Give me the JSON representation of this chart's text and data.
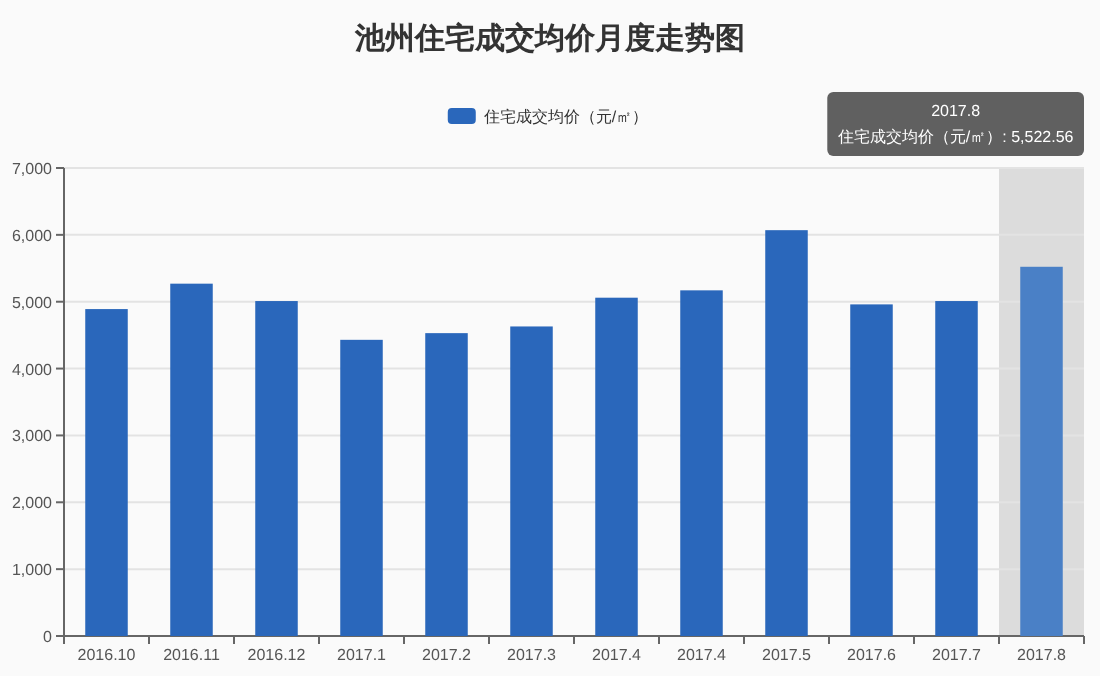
{
  "chart_data": {
    "type": "bar",
    "title": "池州住宅成交均价月度走势图",
    "categories": [
      "2016.10",
      "2016.11",
      "2016.12",
      "2017.1",
      "2017.2",
      "2017.3",
      "2017.4",
      "2017.4",
      "2017.5",
      "2017.6",
      "2017.7",
      "2017.8"
    ],
    "series": [
      {
        "name": "住宅成交均价（元/㎡）",
        "color": "#2a67bb",
        "colors": [
          "#2a67bb",
          "#2a67bb",
          "#2a67bb",
          "#2a67bb",
          "#2a67bb",
          "#2a67bb",
          "#2a67bb",
          "#2a67bb",
          "#2a67bb",
          "#2a67bb",
          "#2a67bb",
          "#4a80c6"
        ],
        "values": [
          4890,
          5270,
          5010,
          4430,
          4530,
          4630,
          5060,
          5170,
          6070,
          4960,
          5010,
          5522.56
        ]
      }
    ],
    "ylim": [
      0,
      7000
    ],
    "yticks": [
      {
        "value": 0,
        "label": "0"
      },
      {
        "value": 1000,
        "label": "1,000"
      },
      {
        "value": 2000,
        "label": "2,000"
      },
      {
        "value": 3000,
        "label": "3,000"
      },
      {
        "value": 4000,
        "label": "4,000"
      },
      {
        "value": 5000,
        "label": "5,000"
      },
      {
        "value": 6000,
        "label": "6,000"
      },
      {
        "value": 7000,
        "label": "7,000"
      }
    ],
    "grid": "y",
    "legend": "top",
    "bands": [
      {
        "axis": "x",
        "from": "2017.8",
        "to": "2017.8",
        "color": "#dcdcdc"
      }
    ],
    "annotations": [
      "2017.8\n住宅成交均价（元/㎡）: 5,522.56"
    ]
  }
}
